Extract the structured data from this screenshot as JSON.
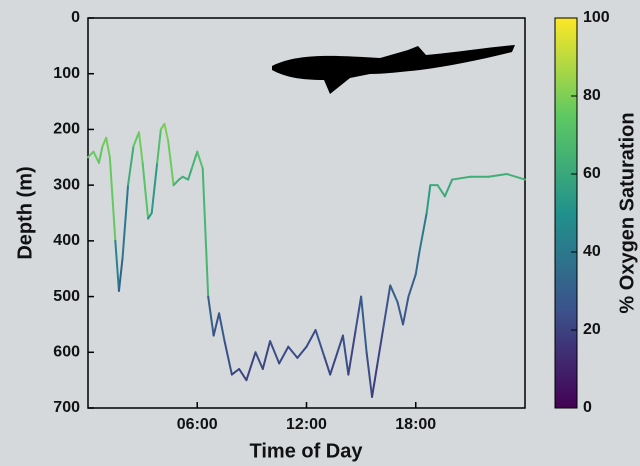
{
  "chart_data": {
    "type": "colored-line",
    "x_label": "Time of Day",
    "y_label": "Depth (m)",
    "colorbar_label": "% Oxygen Saturation",
    "colormap": "viridis",
    "y_reversed": true,
    "xlim": [
      0,
      24
    ],
    "xticks": [
      {
        "value": 6,
        "label": "06:00"
      },
      {
        "value": 12,
        "label": "12:00"
      },
      {
        "value": 18,
        "label": "18:00"
      }
    ],
    "ylim": [
      0,
      700
    ],
    "yticks": [
      0,
      100,
      200,
      300,
      400,
      500,
      600,
      700
    ],
    "clim": [
      0,
      100
    ],
    "cticks": [
      0,
      20,
      40,
      60,
      80,
      100
    ],
    "x": [
      0,
      0.3,
      0.6,
      0.8,
      1.0,
      1.2,
      1.5,
      1.7,
      1.9,
      2.2,
      2.5,
      2.8,
      3.0,
      3.3,
      3.5,
      3.8,
      4.0,
      4.2,
      4.4,
      4.7,
      5.0,
      5.2,
      5.5,
      5.7,
      6.0,
      6.3,
      6.6,
      6.9,
      7.2,
      7.5,
      7.9,
      8.3,
      8.7,
      9.2,
      9.6,
      10.0,
      10.5,
      11.0,
      11.5,
      12.0,
      12.5,
      13.0,
      13.3,
      13.7,
      14.0,
      14.3,
      14.7,
      15.0,
      15.3,
      15.6,
      15.9,
      16.2,
      16.6,
      17.0,
      17.3,
      17.6,
      18.0,
      18.2,
      18.6,
      18.8,
      19.2,
      19.6,
      20.0,
      21.0,
      22.0,
      23.0,
      24.0
    ],
    "series": [
      {
        "name": "Depth",
        "values": [
          250,
          240,
          260,
          230,
          215,
          250,
          400,
          490,
          430,
          300,
          230,
          205,
          260,
          360,
          350,
          260,
          200,
          190,
          220,
          300,
          290,
          285,
          290,
          270,
          240,
          270,
          500,
          570,
          530,
          580,
          640,
          630,
          650,
          600,
          630,
          580,
          620,
          590,
          610,
          590,
          560,
          610,
          640,
          600,
          570,
          640,
          560,
          500,
          600,
          680,
          620,
          560,
          480,
          510,
          550,
          500,
          460,
          420,
          350,
          300,
          300,
          320,
          290,
          285,
          285,
          280,
          290
        ],
        "oxygen": [
          76,
          77,
          75,
          77,
          78,
          76,
          45,
          30,
          40,
          62,
          75,
          78,
          72,
          52,
          54,
          70,
          78,
          80,
          77,
          64,
          63,
          63,
          62,
          66,
          72,
          66,
          30,
          24,
          28,
          24,
          20,
          21,
          20,
          23,
          21,
          24,
          22,
          23,
          22,
          23,
          25,
          22,
          21,
          23,
          24,
          21,
          25,
          29,
          23,
          18,
          21,
          25,
          31,
          29,
          26,
          30,
          34,
          40,
          55,
          62,
          62,
          60,
          63,
          63,
          63,
          64,
          62
        ]
      }
    ]
  }
}
